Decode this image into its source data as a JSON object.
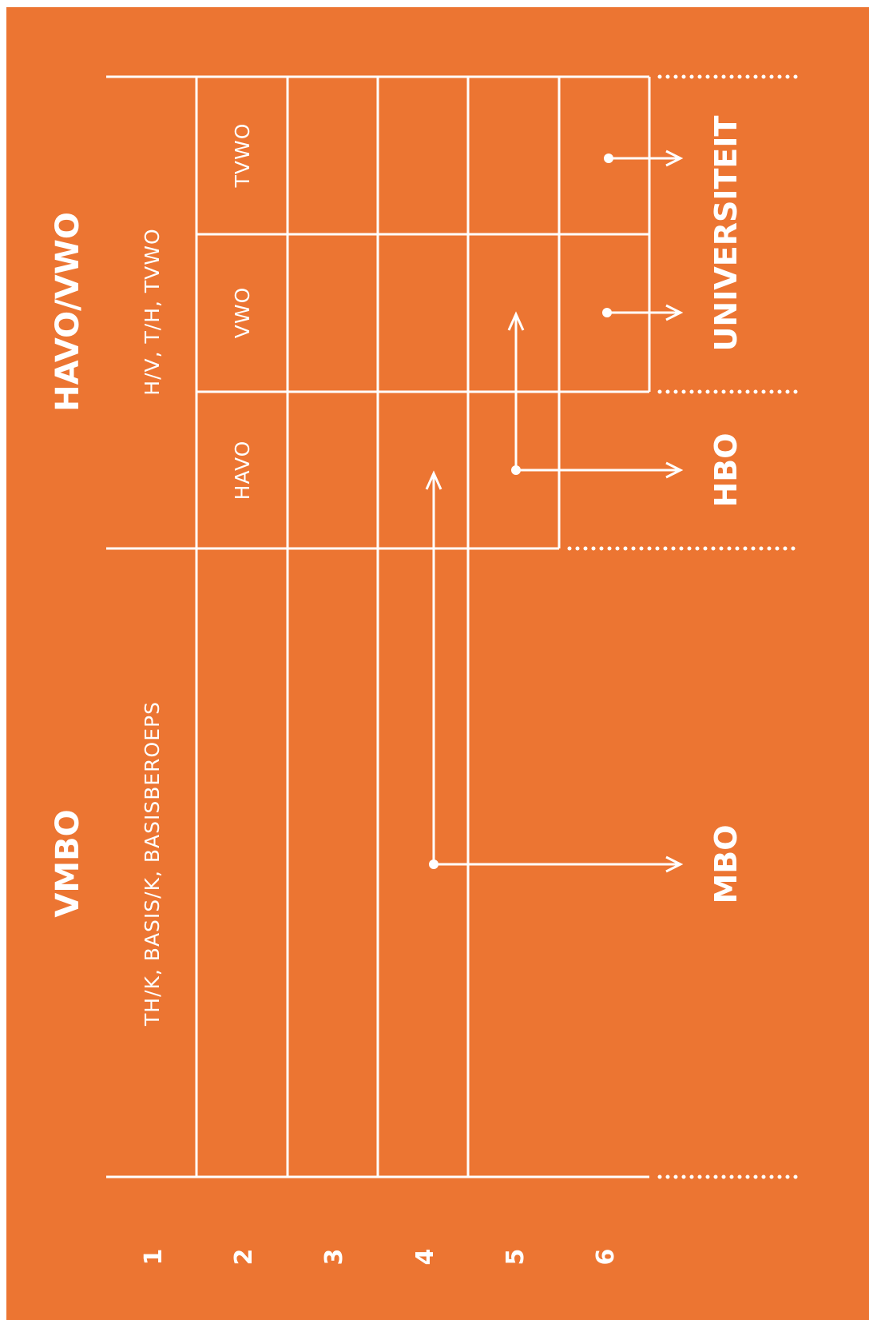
{
  "diagram": {
    "background_color": "#EC7532",
    "line_color": "#FFFFFF",
    "tracks": {
      "vmbo": {
        "title": "VMBO",
        "levels": "TH/K, BASIS/K, BASISBEROEPS"
      },
      "havo_vwo": {
        "title": "HAVO/VWO",
        "levels": "H/V, T/H, TVWO"
      }
    },
    "streams": {
      "havo": "HAVO",
      "vwo": "VWO",
      "tvwo": "TVWO"
    },
    "destinations": {
      "mbo": "MBO",
      "hbo": "HBO",
      "universiteit": "UNIVERSITEIT"
    },
    "years": [
      "1",
      "2",
      "3",
      "4",
      "5",
      "6"
    ]
  }
}
